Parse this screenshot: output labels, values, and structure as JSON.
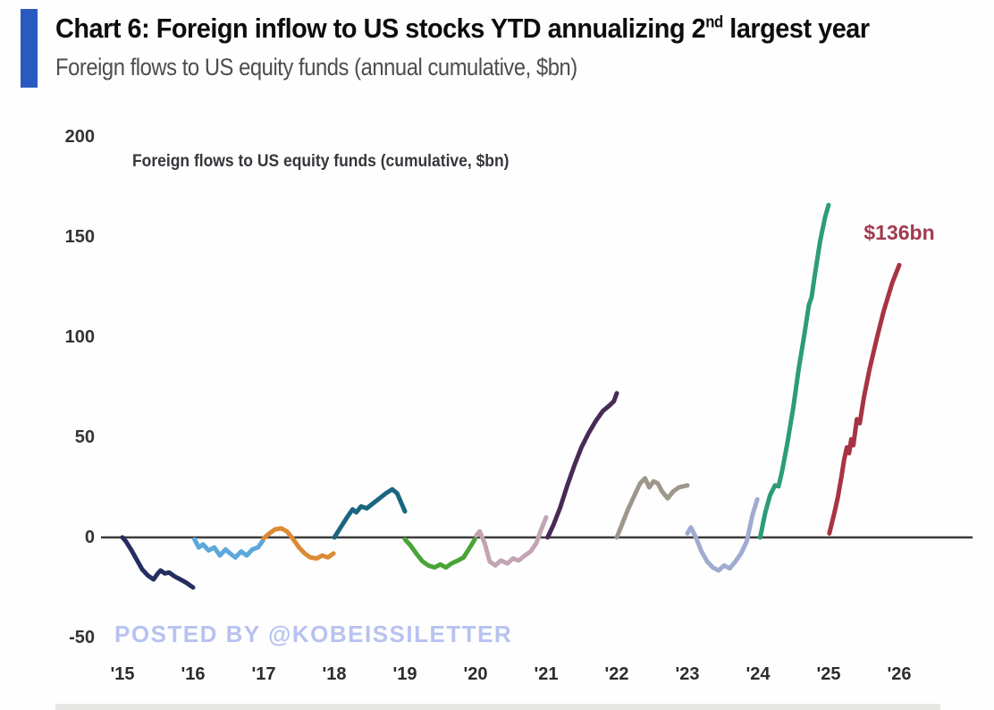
{
  "header": {
    "title_prefix": "Chart 6: Foreign inflow to US stocks YTD annualizing 2",
    "title_sup": "nd",
    "title_suffix": " largest year",
    "subtitle": "Foreign flows to US equity funds (annual cumulative, $bn)",
    "accent_color": "#2a5ac0"
  },
  "watermark": "POSTED BY @KOBEISSILETTER",
  "chart_data": {
    "type": "line",
    "title": "Foreign flows to US equity funds (cumulative, $bn)",
    "ylabel": "$bn",
    "ylim": [
      -50,
      200
    ],
    "yticks": [
      200,
      150,
      100,
      50,
      0,
      -50
    ],
    "xticks": [
      "'15",
      "'16",
      "'17",
      "'18",
      "'19",
      "'20",
      "'21",
      "'22",
      "'23",
      "'24",
      "'25",
      "'26"
    ],
    "grid": false,
    "zero_line_color": "#3b3b3b",
    "annotation": {
      "text": "$136bn",
      "color": "#a23a4f",
      "x": 2026.0,
      "y": 152
    },
    "series": [
      {
        "name": "2015",
        "color": "#242e60",
        "points": [
          [
            2015.0,
            0
          ],
          [
            2015.05,
            -2
          ],
          [
            2015.12,
            -6
          ],
          [
            2015.2,
            -11
          ],
          [
            2015.28,
            -16
          ],
          [
            2015.36,
            -19
          ],
          [
            2015.44,
            -21
          ],
          [
            2015.5,
            -18
          ],
          [
            2015.54,
            -16.5
          ],
          [
            2015.6,
            -18
          ],
          [
            2015.66,
            -17.5
          ],
          [
            2015.74,
            -19.5
          ],
          [
            2015.82,
            -21
          ],
          [
            2015.9,
            -22.5
          ],
          [
            2016.0,
            -25
          ]
        ]
      },
      {
        "name": "2016",
        "color": "#5ca8da",
        "points": [
          [
            2016.02,
            -1
          ],
          [
            2016.08,
            -5
          ],
          [
            2016.14,
            -3.5
          ],
          [
            2016.22,
            -6.5
          ],
          [
            2016.3,
            -5
          ],
          [
            2016.38,
            -9
          ],
          [
            2016.46,
            -6
          ],
          [
            2016.54,
            -8.5
          ],
          [
            2016.6,
            -10
          ],
          [
            2016.68,
            -7
          ],
          [
            2016.76,
            -9
          ],
          [
            2016.84,
            -6
          ],
          [
            2016.92,
            -5
          ],
          [
            2016.99,
            -1.5
          ]
        ]
      },
      {
        "name": "2017",
        "color": "#dc8a35",
        "points": [
          [
            2017.0,
            -0.5
          ],
          [
            2017.08,
            2
          ],
          [
            2017.16,
            4
          ],
          [
            2017.25,
            4.5
          ],
          [
            2017.33,
            3
          ],
          [
            2017.42,
            -1
          ],
          [
            2017.5,
            -5
          ],
          [
            2017.58,
            -8
          ],
          [
            2017.66,
            -10
          ],
          [
            2017.75,
            -10.5
          ],
          [
            2017.83,
            -9
          ],
          [
            2017.91,
            -10
          ],
          [
            2017.99,
            -8
          ]
        ]
      },
      {
        "name": "2018",
        "color": "#1b667f",
        "points": [
          [
            2018.0,
            0
          ],
          [
            2018.09,
            5
          ],
          [
            2018.18,
            10
          ],
          [
            2018.26,
            14
          ],
          [
            2018.31,
            12.5
          ],
          [
            2018.38,
            15.5
          ],
          [
            2018.46,
            14.5
          ],
          [
            2018.55,
            17
          ],
          [
            2018.64,
            19.5
          ],
          [
            2018.73,
            22
          ],
          [
            2018.82,
            24
          ],
          [
            2018.89,
            22
          ],
          [
            2019.0,
            13
          ]
        ]
      },
      {
        "name": "2019",
        "color": "#48a437",
        "points": [
          [
            2019.0,
            -1
          ],
          [
            2019.08,
            -4
          ],
          [
            2019.16,
            -8
          ],
          [
            2019.25,
            -12
          ],
          [
            2019.33,
            -14
          ],
          [
            2019.42,
            -15
          ],
          [
            2019.5,
            -13.5
          ],
          [
            2019.58,
            -15
          ],
          [
            2019.66,
            -13
          ],
          [
            2019.75,
            -11.5
          ],
          [
            2019.83,
            -10
          ],
          [
            2019.92,
            -5
          ],
          [
            2019.99,
            -1
          ]
        ]
      },
      {
        "name": "2020",
        "color": "#c3a4b4",
        "points": [
          [
            2020.01,
            1
          ],
          [
            2020.06,
            3
          ],
          [
            2020.13,
            -3
          ],
          [
            2020.2,
            -12
          ],
          [
            2020.28,
            -14
          ],
          [
            2020.36,
            -11.5
          ],
          [
            2020.45,
            -13
          ],
          [
            2020.53,
            -10.5
          ],
          [
            2020.61,
            -11.5
          ],
          [
            2020.7,
            -9
          ],
          [
            2020.78,
            -7
          ],
          [
            2020.86,
            -3
          ],
          [
            2020.93,
            4
          ],
          [
            2021.0,
            10
          ]
        ]
      },
      {
        "name": "2021",
        "color": "#482b55",
        "points": [
          [
            2021.02,
            0
          ],
          [
            2021.1,
            6
          ],
          [
            2021.2,
            15
          ],
          [
            2021.3,
            26
          ],
          [
            2021.4,
            36
          ],
          [
            2021.5,
            45
          ],
          [
            2021.6,
            52
          ],
          [
            2021.7,
            58
          ],
          [
            2021.8,
            63
          ],
          [
            2021.9,
            66
          ],
          [
            2021.96,
            68
          ],
          [
            2022.0,
            72
          ]
        ]
      },
      {
        "name": "2022",
        "color": "#9d978b",
        "points": [
          [
            2022.0,
            0
          ],
          [
            2022.08,
            7
          ],
          [
            2022.16,
            14
          ],
          [
            2022.25,
            21
          ],
          [
            2022.33,
            27
          ],
          [
            2022.4,
            29.5
          ],
          [
            2022.46,
            25
          ],
          [
            2022.52,
            28
          ],
          [
            2022.58,
            27
          ],
          [
            2022.64,
            23
          ],
          [
            2022.72,
            19.5
          ],
          [
            2022.8,
            23
          ],
          [
            2022.88,
            25
          ],
          [
            2023.0,
            26
          ]
        ]
      },
      {
        "name": "2023",
        "color": "#9fabd1",
        "points": [
          [
            2023.0,
            2
          ],
          [
            2023.05,
            5
          ],
          [
            2023.12,
            0
          ],
          [
            2023.2,
            -7
          ],
          [
            2023.28,
            -12
          ],
          [
            2023.36,
            -15
          ],
          [
            2023.44,
            -16.5
          ],
          [
            2023.52,
            -14
          ],
          [
            2023.6,
            -15.5
          ],
          [
            2023.68,
            -12
          ],
          [
            2023.76,
            -8
          ],
          [
            2023.84,
            -2
          ],
          [
            2023.92,
            11
          ],
          [
            2023.99,
            19
          ]
        ]
      },
      {
        "name": "2024",
        "color": "#2c9c79",
        "points": [
          [
            2024.03,
            0
          ],
          [
            2024.1,
            12
          ],
          [
            2024.17,
            21
          ],
          [
            2024.24,
            26
          ],
          [
            2024.29,
            25.5
          ],
          [
            2024.34,
            33
          ],
          [
            2024.42,
            48
          ],
          [
            2024.5,
            65
          ],
          [
            2024.58,
            85
          ],
          [
            2024.66,
            102
          ],
          [
            2024.72,
            116
          ],
          [
            2024.76,
            120
          ],
          [
            2024.8,
            130
          ],
          [
            2024.88,
            148
          ],
          [
            2024.95,
            160
          ],
          [
            2025.0,
            166
          ]
        ]
      },
      {
        "name": "2025",
        "color": "#a83443",
        "points": [
          [
            2025.01,
            2
          ],
          [
            2025.08,
            12
          ],
          [
            2025.13,
            20
          ],
          [
            2025.18,
            30
          ],
          [
            2025.22,
            39
          ],
          [
            2025.26,
            45
          ],
          [
            2025.29,
            42
          ],
          [
            2025.32,
            49
          ],
          [
            2025.35,
            46
          ],
          [
            2025.4,
            59
          ],
          [
            2025.44,
            57
          ],
          [
            2025.5,
            70
          ],
          [
            2025.58,
            84
          ],
          [
            2025.68,
            99
          ],
          [
            2025.78,
            113
          ],
          [
            2025.9,
            127
          ],
          [
            2026.0,
            136
          ]
        ]
      }
    ]
  }
}
